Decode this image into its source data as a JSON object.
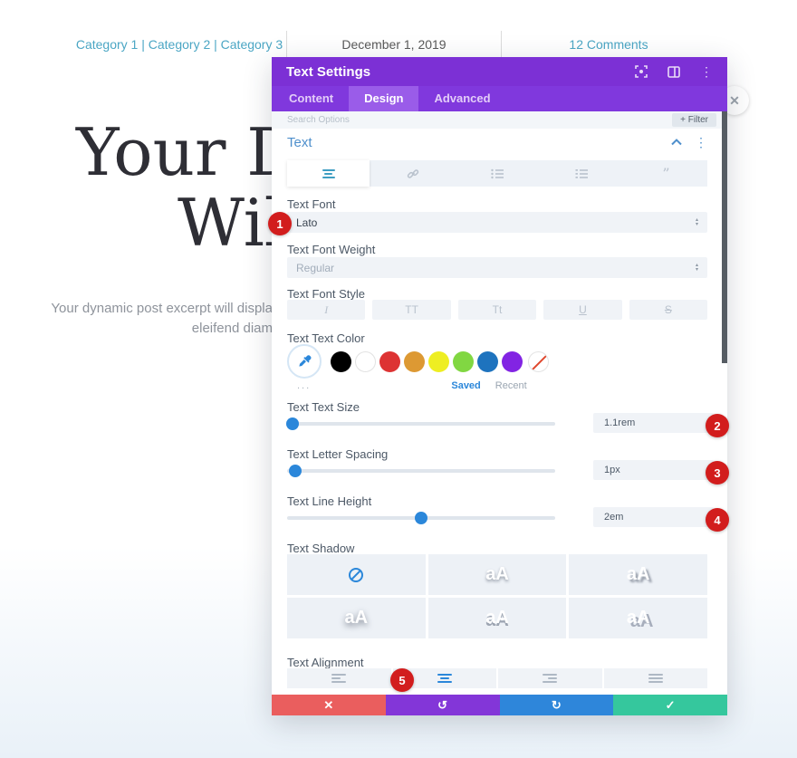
{
  "page": {
    "meta": {
      "categories": "Category 1 | Category 2 | Category 3",
      "date": "December 1, 2019",
      "comments": "12 Comments"
    },
    "heading": {
      "line1": "Your Dy",
      "line2": "Will"
    },
    "excerpt": {
      "line1": "Your dynamic post excerpt will displa",
      "line2": "eleifend diam"
    }
  },
  "modal": {
    "title": "Text Settings",
    "tabs": [
      "Content",
      "Design",
      "Advanced"
    ],
    "search": {
      "placeholder": "Search Options",
      "filter": "+ Filter"
    },
    "section": {
      "title": "Text"
    },
    "fields": {
      "text_font": {
        "label": "Text Font",
        "value": "Lato"
      },
      "text_font_weight": {
        "label": "Text Font Weight",
        "value": "Regular"
      },
      "text_font_style": {
        "label": "Text Font Style",
        "options": [
          "I",
          "TT",
          "Tt",
          "U",
          "S"
        ]
      },
      "text_color": {
        "label": "Text Text Color",
        "saved_label": "Saved",
        "recent_label": "Recent",
        "more_dots": "...",
        "swatches": [
          "#000000",
          "#ffffff",
          "#dd3333",
          "#dd9933",
          "#eeee22",
          "#81d742",
          "#1e73be",
          "#8224e3"
        ]
      },
      "text_size": {
        "label": "Text Text Size",
        "value": "1.1rem",
        "thumb_style": "left:2%"
      },
      "letter_spacing": {
        "label": "Text Letter Spacing",
        "value": "1px",
        "thumb_style": "left:3%"
      },
      "line_height": {
        "label": "Text Line Height",
        "value": "2em",
        "thumb_style": "left:50%"
      },
      "text_shadow": {
        "label": "Text Shadow",
        "preview": "aA"
      },
      "text_alignment": {
        "label": "Text Alignment"
      }
    },
    "footer": {
      "cancel": "✕",
      "undo": "↺",
      "redo": "↻",
      "save": "✓"
    }
  },
  "badges": {
    "b1": "1",
    "b2": "2",
    "b3": "3",
    "b4": "4",
    "b5": "5"
  },
  "colors": {
    "accent_purple": "#7c30d5",
    "accent_blue": "#2b87da",
    "badge_red": "#d21d1d",
    "save_green": "#35c79d",
    "cancel_red": "#ea5e5e",
    "link_teal": "#4ba6c4"
  }
}
